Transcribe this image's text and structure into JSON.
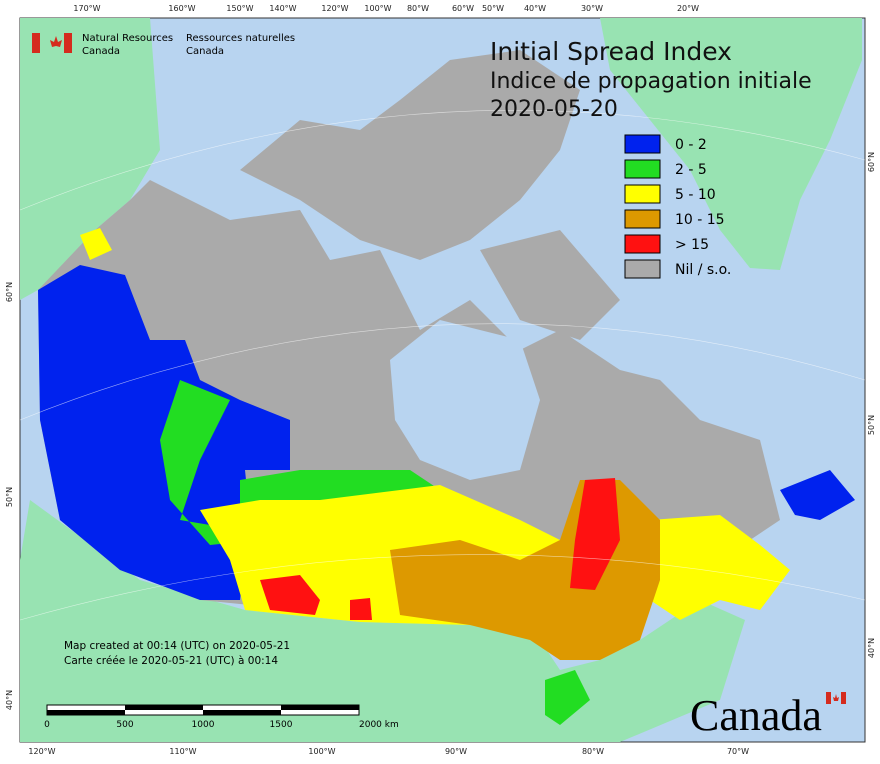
{
  "header": {
    "agency_en": [
      "Natural Resources",
      "Canada"
    ],
    "agency_fr": [
      "Ressources naturelles",
      "Canada"
    ],
    "title": "Initial Spread Index",
    "title_fr": "Indice de propagation initiale",
    "date": "2020-05-20"
  },
  "legend": [
    {
      "label": "0 - 2",
      "color": "#0022ee"
    },
    {
      "label": "2 - 5",
      "color": "#22dd22"
    },
    {
      "label": "5 - 10",
      "color": "#ffff00"
    },
    {
      "label": "10 - 15",
      "color": "#dd9900"
    },
    {
      "label": "> 15",
      "color": "#ff1111"
    },
    {
      "label": "Nil / s.o.",
      "color": "#aaaaaa"
    }
  ],
  "graticule": {
    "top": [
      "170°W",
      "160°W",
      "150°W",
      "140°W",
      "120°W",
      "100°W",
      "80°W",
      "60°W",
      "50°W",
      "40°W",
      "30°W",
      "20°W"
    ],
    "bottom": [
      "120°W",
      "110°W",
      "100°W",
      "90°W",
      "80°W",
      "70°W"
    ],
    "left": [
      "60°N",
      "50°N",
      "40°N"
    ],
    "right": [
      "60°N",
      "50°N",
      "40°N"
    ]
  },
  "notes": [
    "Map created at 00:14 (UTC) on 2020-05-21",
    "Carte créée le 2020-05-21 (UTC) à 00:14"
  ],
  "scale_labels": [
    "0",
    "500",
    "1000",
    "1500",
    "2000 km"
  ],
  "wordmark": "Canada"
}
